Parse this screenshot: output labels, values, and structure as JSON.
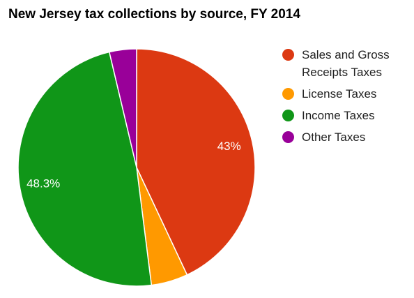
{
  "chart_data": {
    "type": "pie",
    "title": "New Jersey tax collections by source, FY 2014",
    "slices": [
      {
        "label": "Sales and Gross Receipts Taxes",
        "value": 43.0,
        "display_label": "43%",
        "color": "#dc3912"
      },
      {
        "label": "License Taxes",
        "value": 5.0,
        "display_label": "",
        "color": "#ff9900"
      },
      {
        "label": "Income Taxes",
        "value": 48.3,
        "display_label": "48.3%",
        "color": "#109618"
      },
      {
        "label": "Other Taxes",
        "value": 3.7,
        "display_label": "",
        "color": "#990099"
      }
    ],
    "legend_position": "right",
    "start_direction": "top, clockwise"
  }
}
